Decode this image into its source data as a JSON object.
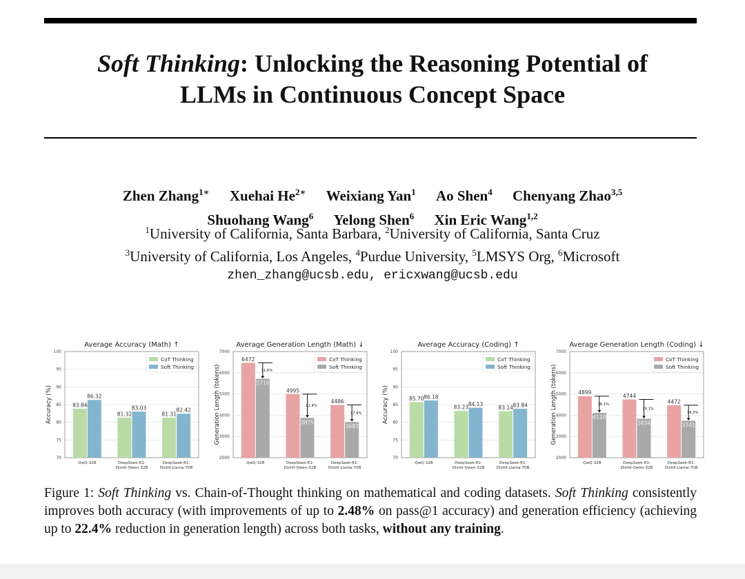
{
  "paper": {
    "title_em": "Soft Thinking",
    "title_rest": ": Unlocking the Reasoning Potential of",
    "title_line2": "LLMs in Continuous Concept Space",
    "authors_line1": [
      {
        "name": "Zhen Zhang",
        "sup": "1∗"
      },
      {
        "name": "Xuehai He",
        "sup": "2∗"
      },
      {
        "name": "Weixiang Yan",
        "sup": "1"
      },
      {
        "name": "Ao Shen",
        "sup": "4"
      },
      {
        "name": "Chenyang Zhao",
        "sup": "3,5"
      }
    ],
    "authors_line2": [
      {
        "name": "Shuohang Wang",
        "sup": "6"
      },
      {
        "name": "Yelong Shen",
        "sup": "6"
      },
      {
        "name": "Xin Eric Wang",
        "sup": "1,2"
      }
    ],
    "affil_line1": [
      {
        "sup": "1",
        "text": "University of California, Santa Barbara, "
      },
      {
        "sup": "2",
        "text": "University of California, Santa Cruz"
      }
    ],
    "affil_line2": [
      {
        "sup": "3",
        "text": "University of California, Los Angeles, "
      },
      {
        "sup": "4",
        "text": "Purdue University, "
      },
      {
        "sup": "5",
        "text": "LMSYS Org, "
      },
      {
        "sup": "6",
        "text": "Microsoft"
      }
    ],
    "emails": "zhen_zhang@ucsb.edu, ericxwang@ucsb.edu",
    "caption": {
      "p1": "Figure 1: ",
      "i1": "Soft Thinking",
      "p2": " vs. Chain-of-Thought thinking on mathematical and coding datasets. ",
      "i2": "Soft Thinking",
      "p3": " consistently improves both accuracy (with improvements of up to ",
      "b1": "2.48%",
      "p4": " on pass@1 accuracy) and generation efficiency (achieving up to ",
      "b2": "22.4%",
      "p5": " reduction in generation length) across both tasks, ",
      "b3": "without any training",
      "p6": "."
    }
  },
  "chart_data": [
    {
      "type": "bar",
      "title": "Average Accuracy (Math) ↑",
      "ylabel": "Accuracy (%)",
      "xlabel": "",
      "ylim": [
        70,
        100
      ],
      "yticks": [
        "70",
        "75",
        "80",
        "85",
        "90",
        "95",
        "100"
      ],
      "categories": [
        [
          "QwQ-32B"
        ],
        [
          "DeepSeek-R1-",
          "Distill-Qwen-32B"
        ],
        [
          "DeepSeek-R1-",
          "Distill-Llama-70B"
        ]
      ],
      "series": [
        {
          "name": "CoT Thinking",
          "color": "#b9dba6",
          "values": [
            83.84,
            81.32,
            81.31
          ]
        },
        {
          "name": "Soft Thinking",
          "color": "#84b5cf",
          "values": [
            86.32,
            83.03,
            82.42
          ]
        }
      ],
      "legend": "top-right",
      "grid": true
    },
    {
      "type": "bar",
      "title": "Average Generation Length (Math) ↓",
      "ylabel": "Generation Length (tokens)",
      "xlabel": "",
      "ylim": [
        2000,
        7000
      ],
      "yticks": [
        "2000",
        "3000",
        "4000",
        "5000",
        "6000",
        "7000"
      ],
      "categories": [
        [
          "QwQ-32B"
        ],
        [
          "DeepSeek-R1-",
          "Distill-Qwen-32B"
        ],
        [
          "DeepSeek-R1-",
          "Distill-Llama-70B"
        ]
      ],
      "series": [
        {
          "name": "CoT Thinking",
          "color": "#e8a3a3",
          "values": [
            6472,
            4995,
            4486
          ]
        },
        {
          "name": "Soft Thinking",
          "color": "#a9a9a9",
          "values": [
            5719,
            3875,
            3683
          ]
        }
      ],
      "reductions": [
        "11.6%",
        "22.4%",
        "17.9%"
      ],
      "legend": "top-right",
      "grid": true
    },
    {
      "type": "bar",
      "title": "Average Accuracy (Coding) ↑",
      "ylabel": "Accuracy (%)",
      "xlabel": "",
      "ylim": [
        70,
        100
      ],
      "yticks": [
        "70",
        "75",
        "80",
        "85",
        "90",
        "95",
        "100"
      ],
      "categories": [
        [
          "QwQ-32B"
        ],
        [
          "DeepSeek-R1-",
          "Distill-Qwen-32B"
        ],
        [
          "DeepSeek-R1-",
          "Distill-Llama-70B"
        ]
      ],
      "series": [
        {
          "name": "CoT Thinking",
          "color": "#b9dba6",
          "values": [
            85.7,
            83.23,
            83.14
          ]
        },
        {
          "name": "Soft Thinking",
          "color": "#84b5cf",
          "values": [
            86.18,
            84.13,
            83.84
          ]
        }
      ],
      "legend": "top-right",
      "grid": true
    },
    {
      "type": "bar",
      "title": "Average Generation Length (Coding) ↓",
      "ylabel": "Generation Length (tokens)",
      "xlabel": "",
      "ylim": [
        2000,
        7000
      ],
      "yticks": [
        "2000",
        "3000",
        "4000",
        "5000",
        "6000",
        "7000"
      ],
      "categories": [
        [
          "QwQ-32B"
        ],
        [
          "DeepSeek-R1-",
          "Distill-Qwen-32B"
        ],
        [
          "DeepSeek-R1-",
          "Distill-Llama-70B"
        ]
      ],
      "series": [
        {
          "name": "CoT Thinking",
          "color": "#e8a3a3",
          "values": [
            4899,
            4744,
            4472
          ]
        },
        {
          "name": "Soft Thinking",
          "color": "#a9a9a9",
          "values": [
            4110,
            3834,
            3741
          ]
        }
      ],
      "reductions": [
        "16.1%",
        "19.1%",
        "16.3%"
      ],
      "legend": "top-right",
      "grid": true
    }
  ]
}
